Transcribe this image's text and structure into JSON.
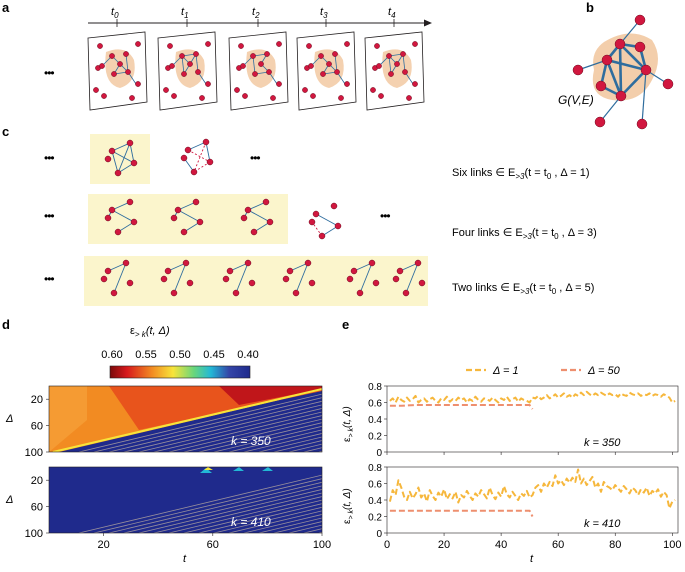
{
  "panel_labels": {
    "a": "a",
    "b": "b",
    "c": "c",
    "d": "d",
    "e": "e"
  },
  "panel_a": {
    "time_labels": [
      "t0",
      "t1",
      "t2",
      "t3",
      "t4"
    ],
    "time_base": "t",
    "time_subs": [
      "0",
      "1",
      "2",
      "3",
      "4"
    ],
    "ellipsis": "•••"
  },
  "panel_b": {
    "graph_label": "G(V,E)"
  },
  "panel_c": {
    "ellipsis": "•••",
    "rows": [
      {
        "prefix": "Six links ∈ E",
        "sub": ">3",
        "suffix": "(t = t",
        "t_sub": "0",
        "end": " , Δ = 1)",
        "delta": 1
      },
      {
        "prefix": "Four links ∈ E",
        "sub": ">3",
        "suffix": "(t = t",
        "t_sub": "0",
        "end": " , Δ = 3)",
        "delta": 3
      },
      {
        "prefix": "Two links ∈ E",
        "sub": ">3",
        "suffix": "(t = t",
        "t_sub": "0",
        "end": " , Δ = 5)",
        "delta": 5
      }
    ]
  },
  "colors": {
    "node": "#d1173f",
    "edge": "#2f6d9e",
    "highlight": "#fbf5cc",
    "community": "#f2c9a2",
    "orange_line": "#f6b73c",
    "salmon_line": "#ee8f6f",
    "heat_low": "#1f2a8c"
  },
  "chart_data": [
    {
      "type": "heatmap",
      "panel": "d",
      "colorbar_label": "ε > k(t, Δ)",
      "colorbar_base": "ε",
      "colorbar_sub": "> k",
      "colorbar_args": "(t, Δ)",
      "colorbar_ticks": [
        "0.60",
        "0.55",
        "0.50",
        "0.45",
        "0.40"
      ],
      "colorbar_range": [
        0.6,
        0.4
      ],
      "subplots": [
        {
          "annotation": "k = 350",
          "ylabel": "Δ",
          "yticks": [
            "20",
            "60",
            "100"
          ],
          "ylim": [
            0,
            100
          ],
          "xlim": [
            0,
            100
          ]
        },
        {
          "annotation": "k = 410",
          "ylabel": "Δ",
          "yticks": [
            "20",
            "60",
            "100"
          ],
          "ylim": [
            0,
            100
          ],
          "xlim": [
            0,
            100
          ]
        }
      ],
      "xticks": [
        "20",
        "60",
        "100"
      ],
      "xlabel": "t"
    },
    {
      "type": "line",
      "panel": "e",
      "legend": [
        "Δ = 1",
        "Δ = 50"
      ],
      "legend_position": "top",
      "xlabel": "t",
      "xticks": [
        "0",
        "20",
        "40",
        "60",
        "80",
        "100"
      ],
      "xlim": [
        0,
        102
      ],
      "ylabel": "ε > k(t, Δ)",
      "subplots": [
        {
          "annotation": "k = 350",
          "yticks": [
            "0",
            "0.2",
            "0.4",
            "0.6",
            "0.8"
          ],
          "ylim": [
            0,
            0.8
          ],
          "series": [
            {
              "name": "Δ = 1",
              "x": [
                1,
                2,
                3,
                4,
                5,
                6,
                7,
                8,
                9,
                10,
                11,
                12,
                13,
                14,
                15,
                16,
                17,
                18,
                19,
                20,
                21,
                22,
                23,
                24,
                25,
                26,
                27,
                28,
                29,
                30,
                31,
                32,
                33,
                34,
                35,
                36,
                37,
                38,
                39,
                40,
                41,
                42,
                43,
                44,
                45,
                46,
                47,
                48,
                49,
                50,
                51,
                52,
                53,
                54,
                55,
                56,
                57,
                58,
                59,
                60,
                61,
                62,
                63,
                64,
                65,
                66,
                67,
                68,
                69,
                70,
                71,
                72,
                73,
                74,
                75,
                76,
                77,
                78,
                79,
                80,
                81,
                82,
                83,
                84,
                85,
                86,
                87,
                88,
                89,
                90,
                91,
                92,
                93,
                94,
                95,
                96,
                97,
                98,
                99,
                100,
                101
              ],
              "values": [
                0.62,
                0.65,
                0.6,
                0.67,
                0.63,
                0.61,
                0.66,
                0.62,
                0.64,
                0.68,
                0.6,
                0.63,
                0.65,
                0.61,
                0.64,
                0.66,
                0.62,
                0.6,
                0.65,
                0.63,
                0.67,
                0.61,
                0.64,
                0.62,
                0.66,
                0.63,
                0.65,
                0.6,
                0.64,
                0.62,
                0.67,
                0.63,
                0.61,
                0.65,
                0.64,
                0.62,
                0.66,
                0.63,
                0.6,
                0.65,
                0.63,
                0.67,
                0.62,
                0.64,
                0.66,
                0.61,
                0.65,
                0.63,
                0.62,
                0.6,
                0.66,
                0.65,
                0.68,
                0.64,
                0.66,
                0.69,
                0.65,
                0.67,
                0.7,
                0.66,
                0.68,
                0.71,
                0.67,
                0.69,
                0.66,
                0.7,
                0.68,
                0.72,
                0.69,
                0.73,
                0.7,
                0.68,
                0.71,
                0.69,
                0.72,
                0.7,
                0.68,
                0.71,
                0.69,
                0.7,
                0.67,
                0.71,
                0.69,
                0.68,
                0.72,
                0.7,
                0.69,
                0.71,
                0.68,
                0.7,
                0.69,
                0.71,
                0.68,
                0.7,
                0.69,
                0.67,
                0.7,
                0.68,
                0.66,
                0.6,
                0.62
              ]
            },
            {
              "name": "Δ = 50",
              "x": [
                1,
                5,
                10,
                15,
                20,
                25,
                30,
                35,
                40,
                45,
                48,
                50,
                51
              ],
              "values": [
                0.56,
                0.56,
                0.57,
                0.57,
                0.57,
                0.57,
                0.57,
                0.57,
                0.57,
                0.57,
                0.57,
                0.57,
                0.52
              ]
            }
          ]
        },
        {
          "annotation": "k = 410",
          "yticks": [
            "0",
            "0.2",
            "0.4",
            "0.6",
            "0.8"
          ],
          "ylim": [
            0,
            0.8
          ],
          "series": [
            {
              "name": "Δ = 1",
              "x": [
                1,
                2,
                3,
                4,
                5,
                6,
                7,
                8,
                9,
                10,
                11,
                12,
                13,
                14,
                15,
                16,
                17,
                18,
                19,
                20,
                21,
                22,
                23,
                24,
                25,
                26,
                27,
                28,
                29,
                30,
                31,
                32,
                33,
                34,
                35,
                36,
                37,
                38,
                39,
                40,
                41,
                42,
                43,
                44,
                45,
                46,
                47,
                48,
                49,
                50,
                51,
                52,
                53,
                54,
                55,
                56,
                57,
                58,
                59,
                60,
                61,
                62,
                63,
                64,
                65,
                66,
                67,
                68,
                69,
                70,
                71,
                72,
                73,
                74,
                75,
                76,
                77,
                78,
                79,
                80,
                81,
                82,
                83,
                84,
                85,
                86,
                87,
                88,
                89,
                90,
                91,
                92,
                93,
                94,
                95,
                96,
                97,
                98,
                99,
                100,
                101
              ],
              "values": [
                0.38,
                0.52,
                0.46,
                0.64,
                0.55,
                0.44,
                0.4,
                0.5,
                0.42,
                0.47,
                0.55,
                0.43,
                0.48,
                0.38,
                0.52,
                0.45,
                0.4,
                0.49,
                0.44,
                0.53,
                0.41,
                0.47,
                0.42,
                0.5,
                0.37,
                0.46,
                0.43,
                0.51,
                0.45,
                0.4,
                0.48,
                0.44,
                0.52,
                0.47,
                0.42,
                0.55,
                0.46,
                0.41,
                0.49,
                0.44,
                0.57,
                0.47,
                0.43,
                0.5,
                0.45,
                0.4,
                0.48,
                0.45,
                0.51,
                0.43,
                0.46,
                0.55,
                0.58,
                0.5,
                0.6,
                0.55,
                0.62,
                0.57,
                0.7,
                0.6,
                0.64,
                0.58,
                0.66,
                0.61,
                0.67,
                0.62,
                0.77,
                0.6,
                0.66,
                0.58,
                0.63,
                0.68,
                0.55,
                0.6,
                0.5,
                0.62,
                0.57,
                0.55,
                0.52,
                0.58,
                0.54,
                0.5,
                0.57,
                0.53,
                0.48,
                0.55,
                0.52,
                0.46,
                0.53,
                0.49,
                0.55,
                0.45,
                0.51,
                0.48,
                0.53,
                0.44,
                0.5,
                0.46,
                0.3,
                0.38,
                0.4
              ]
            },
            {
              "name": "Δ = 50",
              "x": [
                1,
                5,
                10,
                15,
                20,
                25,
                30,
                35,
                40,
                45,
                48,
                50,
                51
              ],
              "values": [
                0.27,
                0.27,
                0.27,
                0.27,
                0.27,
                0.27,
                0.27,
                0.27,
                0.27,
                0.27,
                0.27,
                0.27,
                0.2
              ]
            }
          ]
        }
      ]
    }
  ]
}
